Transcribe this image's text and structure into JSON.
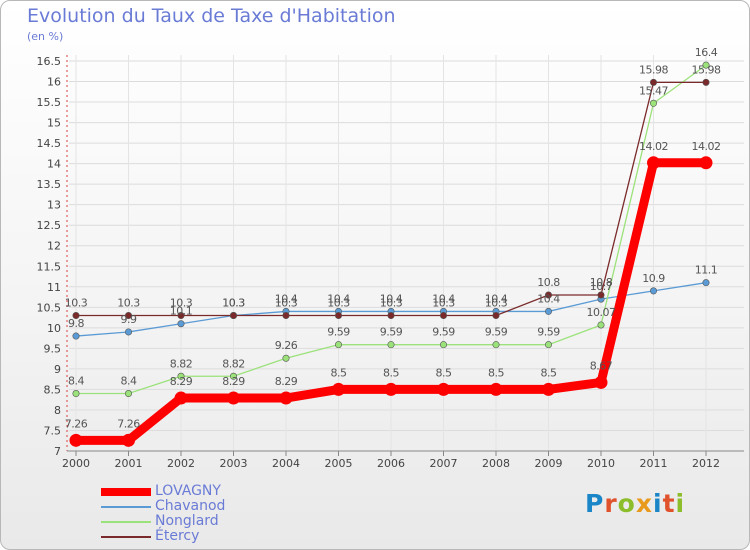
{
  "title": "Evolution du Taux de Taxe d'Habitation",
  "unit_label": "(en %)",
  "brand": "Proxiti",
  "chart_data": {
    "type": "line",
    "title": "Evolution du Taux de Taxe d'Habitation",
    "ylabel": "(en %)",
    "xlabel": "",
    "categories": [
      "2000",
      "2001",
      "2002",
      "2003",
      "2004",
      "2005",
      "2006",
      "2007",
      "2008",
      "2009",
      "2010",
      "2011",
      "2012"
    ],
    "ylim": [
      7,
      16.5
    ],
    "yticks": [
      "7",
      "7.5",
      "8",
      "8.5",
      "9",
      "9.5",
      "10",
      "10.5",
      "11",
      "11.5",
      "12",
      "12.5",
      "13",
      "13.5",
      "14",
      "14.5",
      "15",
      "15.5",
      "16",
      "16.5"
    ],
    "grid": true,
    "legend_position": "bottom-left",
    "series": [
      {
        "name": "LOVAGNY",
        "color": "#ff0000",
        "emphasis": true,
        "values": [
          7.26,
          7.26,
          8.29,
          8.29,
          8.29,
          8.5,
          8.5,
          8.5,
          8.5,
          8.5,
          8.67,
          14.02,
          14.02
        ],
        "labels": [
          "7.26",
          "7.26",
          "8.29",
          "8.29",
          "8.29",
          "8.5",
          "8.5",
          "8.5",
          "8.5",
          "8.5",
          "8.67",
          "14.02",
          "14.02"
        ]
      },
      {
        "name": "Chavanod",
        "color": "#5b9bd5",
        "emphasis": false,
        "values": [
          9.8,
          9.9,
          10.1,
          10.3,
          10.4,
          10.4,
          10.4,
          10.4,
          10.4,
          10.4,
          10.7,
          10.9,
          11.1
        ],
        "labels": [
          "9.8",
          "9.9",
          "10.1",
          "10.3",
          "10.4",
          "10.4",
          "10.4",
          "10.4",
          "10.4",
          "10.4",
          "10.7",
          "10.9",
          "11.1"
        ]
      },
      {
        "name": "Nonglard",
        "color": "#9be27a",
        "emphasis": false,
        "values": [
          8.4,
          8.4,
          8.82,
          8.82,
          9.26,
          9.59,
          9.59,
          9.59,
          9.59,
          9.59,
          10.07,
          15.47,
          16.4
        ],
        "labels": [
          "8.4",
          "8.4",
          "8.82",
          "8.82",
          "9.26",
          "9.59",
          "9.59",
          "9.59",
          "9.59",
          "9.59",
          "10.07",
          "15.47",
          "16.4"
        ]
      },
      {
        "name": "Étercy",
        "color": "#7a2a2a",
        "emphasis": false,
        "values": [
          10.3,
          10.3,
          10.3,
          10.3,
          10.3,
          10.3,
          10.3,
          10.3,
          10.3,
          10.8,
          10.8,
          15.98,
          15.98
        ],
        "labels": [
          "10.3",
          "10.3",
          "10.3",
          "10.3",
          "10.3",
          "10.3",
          "10.3",
          "10.3",
          "10.3",
          "10.8",
          "10.8",
          "15.98",
          "15.98"
        ]
      }
    ]
  }
}
